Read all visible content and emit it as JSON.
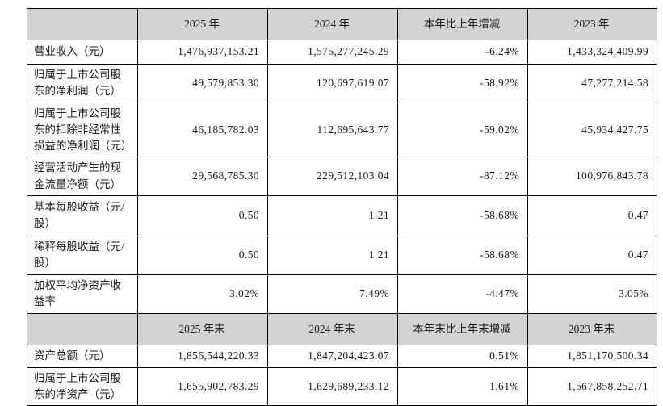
{
  "document": {
    "kind": "financial-summary-table",
    "colors": {
      "header_bg": "#d3d3d3",
      "label_bg": "#d3d3d3",
      "border": "#000000",
      "text": "#1a1a1a",
      "cell_bg": "#ffffff"
    },
    "annual_section": {
      "header": {
        "col_2025": "2025 年",
        "col_2024": "2024 年",
        "col_delta": "本年比上年增减",
        "col_2023": "2023 年"
      },
      "rows": [
        {
          "label": "营业收入（元）",
          "values": [
            "1,476,937,153.21",
            "1,575,277,245.29",
            "-6.24%",
            "1,433,324,409.99"
          ]
        },
        {
          "label": "归属于上市公司股东的净利润（元）",
          "values": [
            "49,579,853.30",
            "120,697,619.07",
            "-58.92%",
            "47,277,214.58"
          ]
        },
        {
          "label": "归属于上市公司股东的扣除非经常性损益的净利润（元）",
          "values": [
            "46,185,782.03",
            "112,695,643.77",
            "-59.02%",
            "45,934,427.75"
          ]
        },
        {
          "label": "经营活动产生的现金流量净额（元）",
          "values": [
            "29,568,785.30",
            "229,512,103.04",
            "-87.12%",
            "100,976,843.78"
          ]
        },
        {
          "label": "基本每股收益（元/股）",
          "values": [
            "0.50",
            "1.21",
            "-58.68%",
            "0.47"
          ]
        },
        {
          "label": "稀释每股收益（元/股）",
          "values": [
            "0.50",
            "1.21",
            "-58.68%",
            "0.47"
          ]
        },
        {
          "label": "加权平均净资产收益率",
          "values": [
            "3.02%",
            "7.49%",
            "-4.47%",
            "3.05%"
          ]
        }
      ]
    },
    "yearend_section": {
      "header": {
        "col_2025": "2025 年末",
        "col_2024": "2024 年末",
        "col_delta": "本年末比上年末增减",
        "col_2023": "2023 年末"
      },
      "rows": [
        {
          "label": "资产总额（元）",
          "values": [
            "1,856,544,220.33",
            "1,847,204,423.07",
            "0.51%",
            "1,851,170,500.34"
          ]
        },
        {
          "label": "归属于上市公司股东的净资产（元）",
          "values": [
            "1,655,902,783.29",
            "1,629,689,233.12",
            "1.61%",
            "1,567,858,252.71"
          ]
        }
      ]
    }
  }
}
